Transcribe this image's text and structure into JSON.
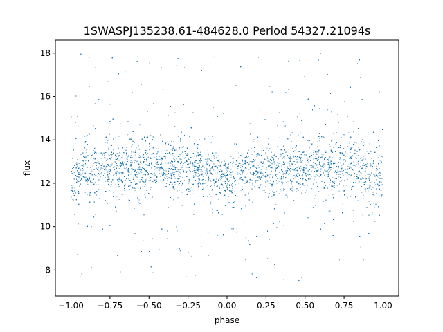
{
  "chart_data": {
    "type": "scatter",
    "title": "1SWASPJ135238.61-484628.0 Period 54327.21094s",
    "xlabel": "phase",
    "ylabel": "flux",
    "xlim": [
      -1.1,
      1.1
    ],
    "ylim": [
      6.8,
      18.6
    ],
    "xticks": [
      -1.0,
      -0.75,
      -0.5,
      -0.25,
      0.0,
      0.25,
      0.5,
      0.75,
      1.0
    ],
    "xtick_labels": [
      "−1.00",
      "−0.75",
      "−0.50",
      "−0.25",
      "0.00",
      "0.25",
      "0.50",
      "0.75",
      "1.00"
    ],
    "yticks": [
      8,
      10,
      12,
      14,
      16,
      18
    ],
    "ytick_labels": [
      "8",
      "10",
      "12",
      "14",
      "16",
      "18"
    ],
    "grid": false,
    "series": [
      {
        "color": "#1f77b4",
        "x_range": [
          -1.0,
          1.0
        ],
        "y_range": [
          7.4,
          18.1
        ],
        "core_flux": 12.7,
        "core_spread": 0.55,
        "phase_dips_at": [
          -1.0,
          0.0,
          1.0
        ],
        "dip_depth": 0.5
      }
    ]
  }
}
